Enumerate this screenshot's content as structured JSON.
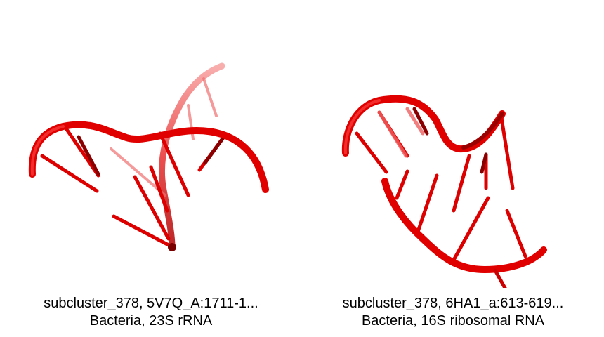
{
  "panels": [
    {
      "caption_line1": "subcluster_378, 5V7Q_A:1711-1...",
      "caption_line2": "Bacteria, 23S rRNA",
      "render_color": "#e00000"
    },
    {
      "caption_line1": "subcluster_378, 6HA1_a:613-619...",
      "caption_line2": "Bacteria, 16S ribosomal RNA",
      "render_color": "#e00000"
    }
  ]
}
